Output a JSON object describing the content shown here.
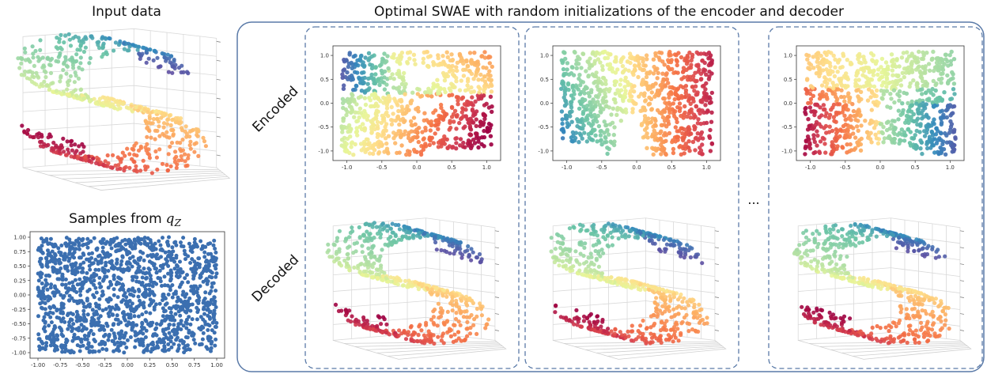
{
  "titles": {
    "input": "Input data",
    "samples_prefix": "Samples from",
    "samples_symbol": "q",
    "samples_sub": "Z",
    "main": "Optimal SWAE with random initializations of the encoder and decoder",
    "row_encoded": "Encoded",
    "row_decoded": "Decoded",
    "ellipsis": "..."
  },
  "colors": {
    "panel_border": "#5a7aa8",
    "samples_point": "#3b6fb0",
    "colormap": [
      "#5e4fa2",
      "#3288bd",
      "#66c2a5",
      "#abdda4",
      "#e6f598",
      "#fee08b",
      "#fdae61",
      "#f46d43",
      "#d53e4f",
      "#9e0142"
    ]
  },
  "chart_data": [
    {
      "type": "scatter",
      "id": "samples",
      "title": "Samples from q_Z",
      "xlim": [
        -1,
        1
      ],
      "ylim": [
        -1,
        1
      ],
      "xticks": [
        "-1.00",
        "-0.75",
        "-0.50",
        "-0.25",
        "0.00",
        "0.25",
        "0.50",
        "0.75",
        "1.00"
      ],
      "yticks": [
        "-1.00",
        "-0.75",
        "-0.50",
        "-0.25",
        "0.00",
        "0.25",
        "0.50",
        "0.75",
        "1.00"
      ],
      "distribution": "uniform"
    },
    {
      "type": "scatter",
      "id": "encoded-1",
      "xlim": [
        -1.2,
        1.2
      ],
      "ylim": [
        -1.2,
        1.2
      ],
      "xticks": [
        "-1.0",
        "-0.5",
        "0.0",
        "0.5",
        "1.0"
      ],
      "yticks": [
        "-1.0",
        "-0.5",
        "0.0",
        "0.5",
        "1.0"
      ]
    },
    {
      "type": "scatter",
      "id": "encoded-2",
      "xlim": [
        -1.2,
        1.2
      ],
      "ylim": [
        -1.2,
        1.2
      ],
      "xticks": [
        "-1.0",
        "-0.5",
        "0.0",
        "0.5",
        "1.0"
      ],
      "yticks": [
        "-1.0",
        "-0.5",
        "0.0",
        "0.5",
        "1.0"
      ]
    },
    {
      "type": "scatter",
      "id": "encoded-3",
      "xlim": [
        -1.2,
        1.2
      ],
      "ylim": [
        -1.2,
        1.2
      ],
      "xticks": [
        "-1.0",
        "-0.5",
        "0.0",
        "0.5",
        "1.0"
      ],
      "yticks": [
        "-1.0",
        "-0.5",
        "0.0",
        "0.5",
        "1.0"
      ]
    }
  ]
}
